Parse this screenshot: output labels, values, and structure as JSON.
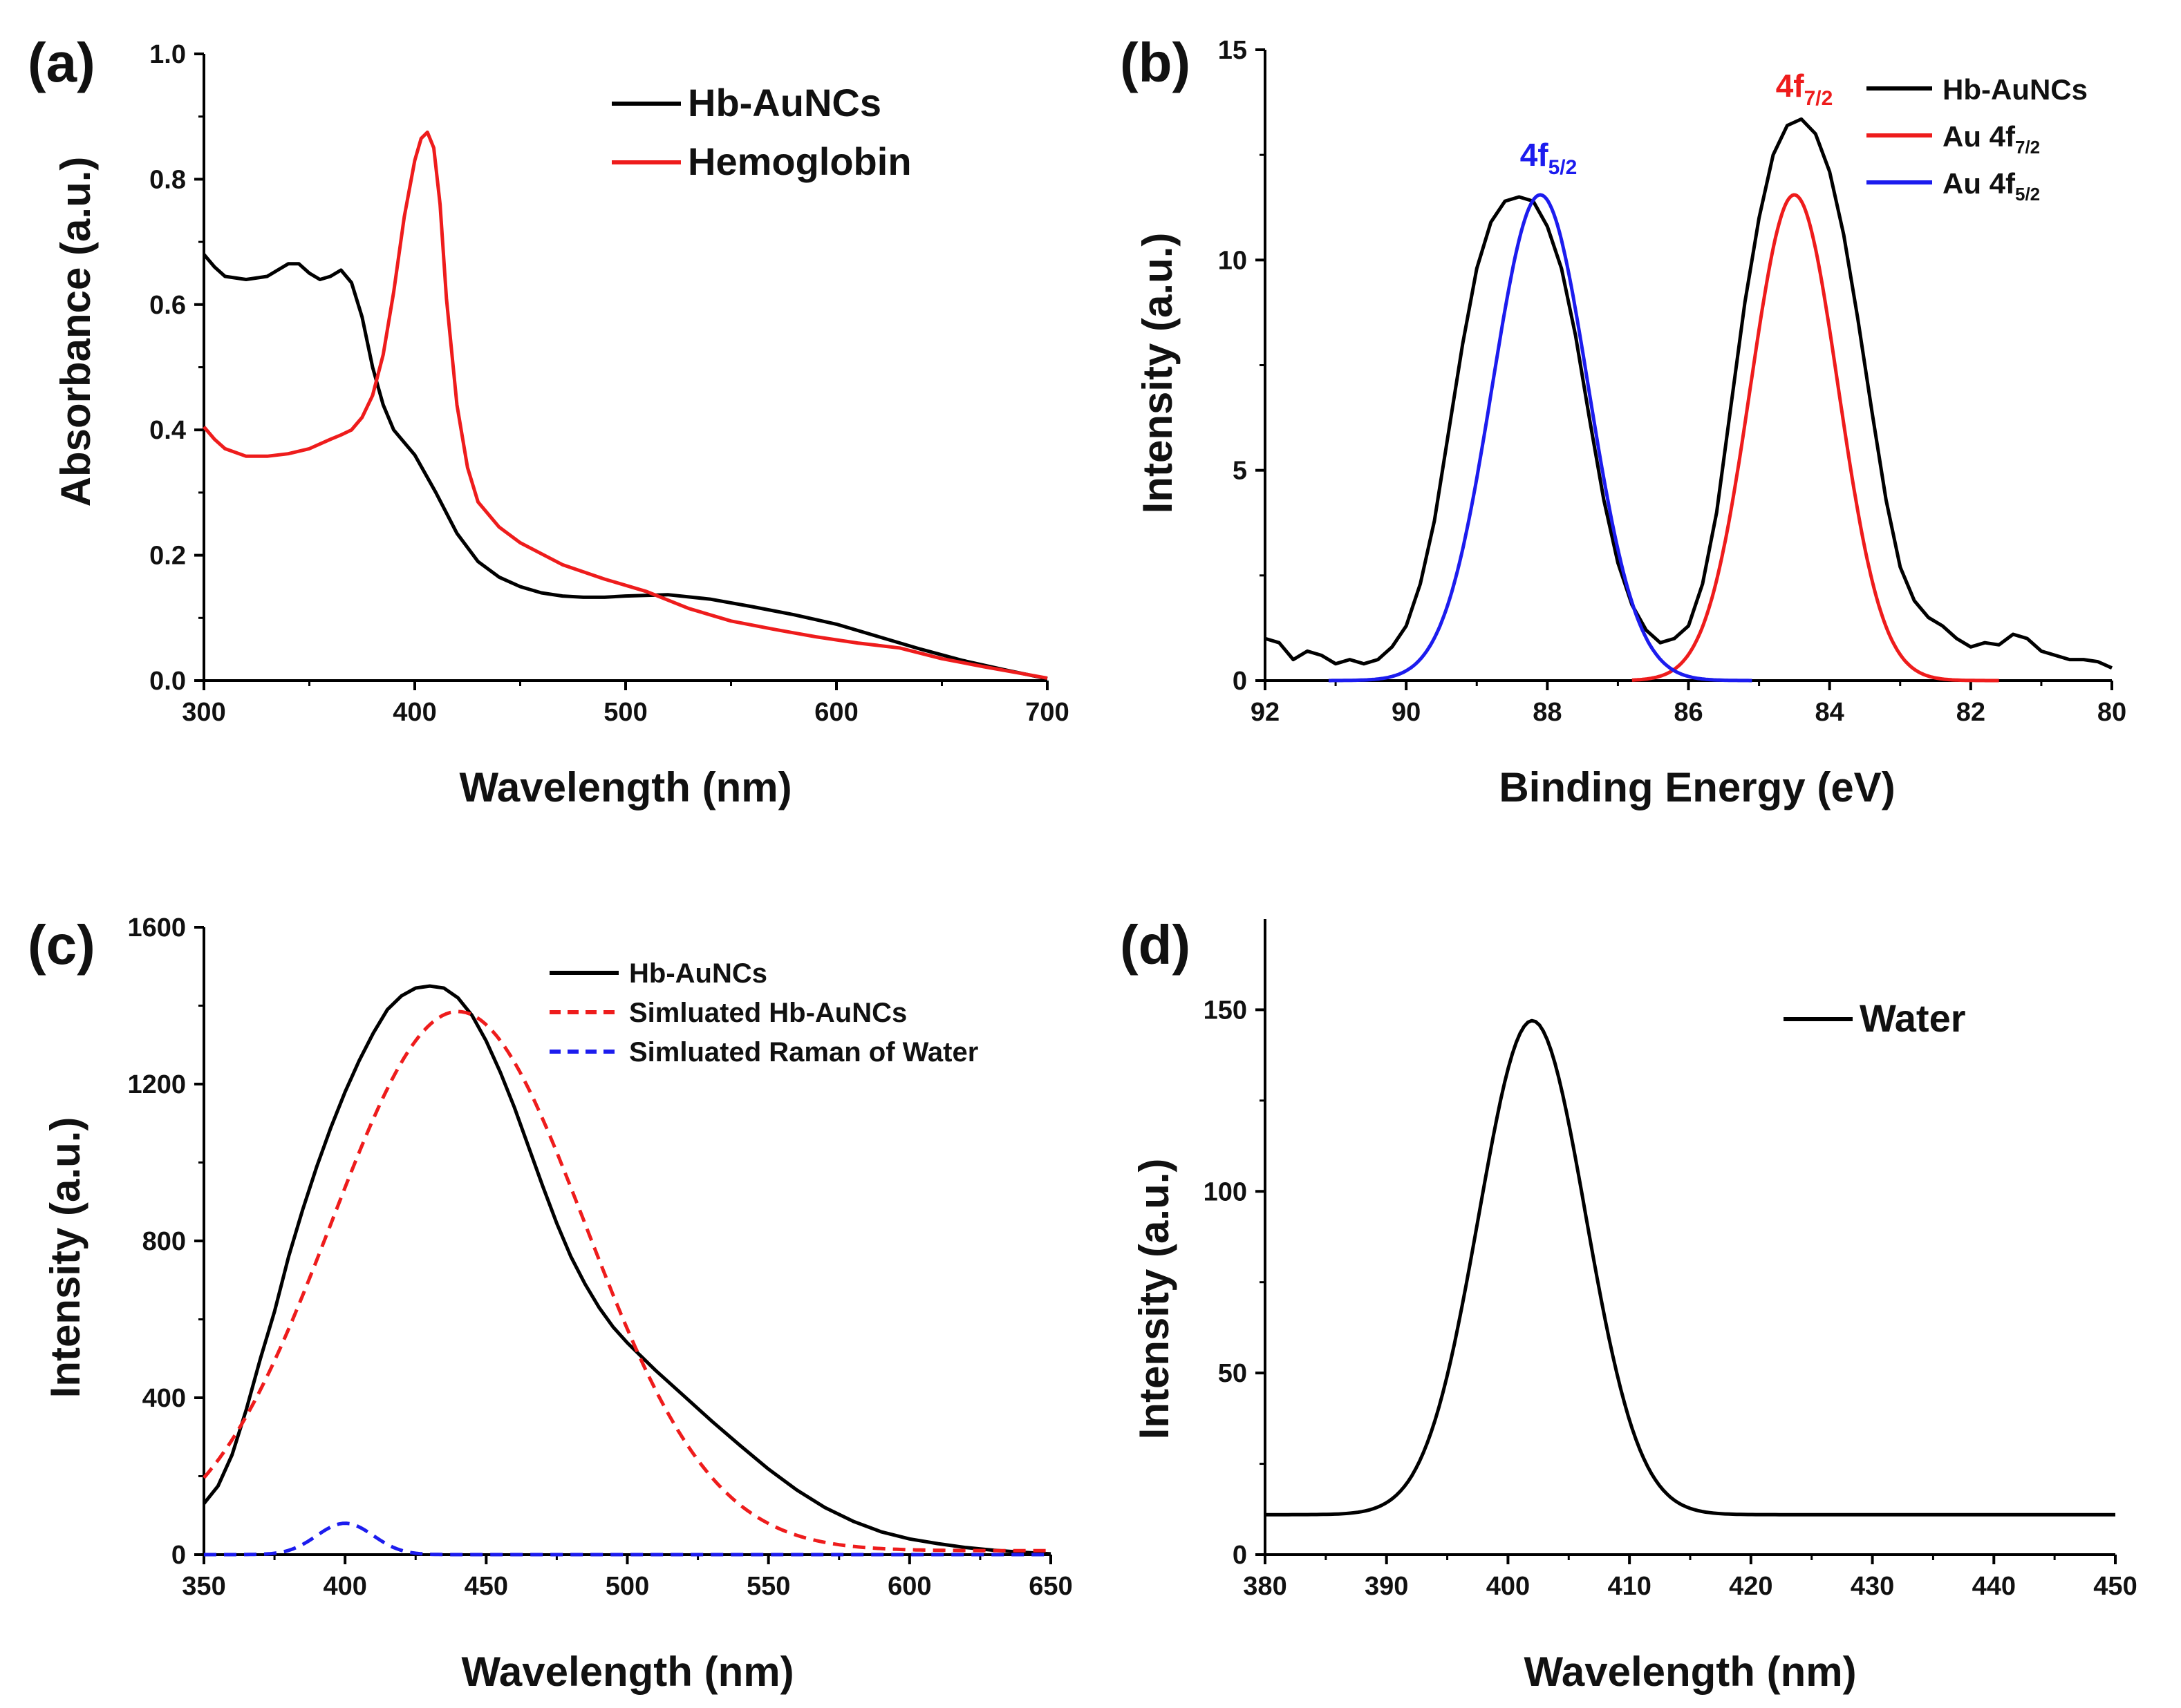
{
  "chart_data": [
    {
      "id": "a",
      "panel_label": "(a)",
      "type": "line",
      "xlabel": "Wavelength (nm)",
      "ylabel": "Absorbance (a.u.)",
      "xlim": [
        300,
        700
      ],
      "ylim": [
        0.0,
        1.0
      ],
      "xticks": [
        300,
        400,
        500,
        600,
        700
      ],
      "xtick_labels": [
        "300",
        "400",
        "500",
        "600",
        "700"
      ],
      "yticks": [
        0.0,
        0.2,
        0.4,
        0.6,
        0.8,
        1.0
      ],
      "ytick_labels": [
        "0.0",
        "0.2",
        "0.4",
        "0.6",
        "0.8",
        "1.0"
      ],
      "legend_position": "top-right",
      "series": [
        {
          "name": "Hb-AuNCs",
          "color": "#000000",
          "dash": false,
          "x": [
            300,
            305,
            310,
            320,
            330,
            335,
            340,
            345,
            350,
            355,
            360,
            365,
            370,
            375,
            380,
            385,
            390,
            400,
            410,
            420,
            430,
            440,
            450,
            460,
            470,
            480,
            490,
            500,
            520,
            540,
            560,
            580,
            600,
            620,
            640,
            660,
            680,
            700
          ],
          "y": [
            0.68,
            0.66,
            0.645,
            0.64,
            0.645,
            0.655,
            0.665,
            0.665,
            0.65,
            0.64,
            0.645,
            0.655,
            0.635,
            0.58,
            0.5,
            0.44,
            0.4,
            0.36,
            0.3,
            0.235,
            0.19,
            0.165,
            0.15,
            0.14,
            0.135,
            0.133,
            0.133,
            0.135,
            0.137,
            0.13,
            0.118,
            0.105,
            0.09,
            0.07,
            0.05,
            0.032,
            0.017,
            0.003
          ]
        },
        {
          "name": "Hemoglobin",
          "color": "#ee1c1c",
          "dash": false,
          "x": [
            300,
            305,
            310,
            320,
            330,
            340,
            350,
            360,
            365,
            370,
            375,
            380,
            385,
            390,
            395,
            400,
            403,
            406,
            409,
            412,
            415,
            420,
            425,
            430,
            440,
            450,
            470,
            490,
            510,
            530,
            550,
            570,
            590,
            610,
            630,
            650,
            670,
            690,
            700
          ],
          "y": [
            0.405,
            0.385,
            0.37,
            0.358,
            0.358,
            0.362,
            0.37,
            0.385,
            0.392,
            0.4,
            0.42,
            0.455,
            0.52,
            0.62,
            0.74,
            0.83,
            0.865,
            0.875,
            0.85,
            0.76,
            0.61,
            0.44,
            0.34,
            0.285,
            0.245,
            0.22,
            0.185,
            0.162,
            0.142,
            0.115,
            0.095,
            0.082,
            0.07,
            0.06,
            0.052,
            0.035,
            0.022,
            0.01,
            0.004
          ]
        }
      ]
    },
    {
      "id": "b",
      "panel_label": "(b)",
      "type": "line",
      "xlabel": "Binding Energy (eV)",
      "ylabel": "Intensity (a.u.)",
      "xlim": [
        92,
        80
      ],
      "x_reversed": true,
      "ylim": [
        0,
        15
      ],
      "xticks": [
        92,
        90,
        88,
        86,
        84,
        82,
        80
      ],
      "xtick_labels": [
        "92",
        "90",
        "88",
        "86",
        "84",
        "82",
        "80"
      ],
      "yticks": [
        0,
        5,
        10,
        15
      ],
      "ytick_labels": [
        "0",
        "5",
        "10",
        "15"
      ],
      "legend_position": "top-right",
      "legend": [
        {
          "label": "Hb-AuNCs",
          "color": "#000000"
        },
        {
          "label": "Au 4f",
          "sub": "7/2",
          "color": "#ee1c1c"
        },
        {
          "label": "Au 4f",
          "sub": "5/2",
          "color": "#1c1cee"
        }
      ],
      "annotations": [
        {
          "text": "4f",
          "sub": "5/2",
          "color": "#1c1cee",
          "x": 88.05,
          "y": 12.4
        },
        {
          "text": "4f",
          "sub": "7/2",
          "color": "#ee1c1c",
          "x": 84.7,
          "y": 14.2
        }
      ],
      "series": [
        {
          "name": "Hb-AuNCs",
          "color": "#000000",
          "x": [
            92,
            91.8,
            91.6,
            91.4,
            91.2,
            91.0,
            90.8,
            90.6,
            90.4,
            90.2,
            90.0,
            89.8,
            89.6,
            89.4,
            89.2,
            89.0,
            88.8,
            88.6,
            88.4,
            88.2,
            88.0,
            87.8,
            87.6,
            87.4,
            87.2,
            87.0,
            86.8,
            86.6,
            86.4,
            86.2,
            86.0,
            85.8,
            85.6,
            85.4,
            85.2,
            85.0,
            84.8,
            84.6,
            84.4,
            84.2,
            84.0,
            83.8,
            83.6,
            83.4,
            83.2,
            83.0,
            82.8,
            82.6,
            82.4,
            82.2,
            82.0,
            81.8,
            81.6,
            81.4,
            81.2,
            81.0,
            80.8,
            80.6,
            80.4,
            80.2,
            80.0
          ],
          "y": [
            1.0,
            0.9,
            0.5,
            0.7,
            0.6,
            0.4,
            0.5,
            0.4,
            0.5,
            0.8,
            1.3,
            2.3,
            3.8,
            5.9,
            8.0,
            9.8,
            10.9,
            11.4,
            11.5,
            11.4,
            10.8,
            9.8,
            8.2,
            6.2,
            4.3,
            2.8,
            1.8,
            1.2,
            0.9,
            1.0,
            1.3,
            2.3,
            4.0,
            6.5,
            9.0,
            11.0,
            12.5,
            13.2,
            13.35,
            13.0,
            12.1,
            10.6,
            8.6,
            6.4,
            4.3,
            2.7,
            1.9,
            1.5,
            1.3,
            1.0,
            0.8,
            0.9,
            0.85,
            1.1,
            1.0,
            0.7,
            0.6,
            0.5,
            0.5,
            0.45,
            0.3
          ]
        },
        {
          "name": "Au 4f7/2",
          "color": "#ee1c1c",
          "model": "gaussian",
          "center": 84.5,
          "amplitude": 11.55,
          "sigma": 0.62,
          "range": [
            86.8,
            81.6
          ]
        },
        {
          "name": "Au 4f5/2",
          "color": "#1c1cee",
          "model": "gaussian",
          "center": 88.1,
          "amplitude": 11.55,
          "sigma": 0.68,
          "range": [
            91.1,
            85.1
          ]
        }
      ]
    },
    {
      "id": "c",
      "panel_label": "(c)",
      "type": "line",
      "xlabel": "Wavelength (nm)",
      "ylabel": "Intensity (a.u.)",
      "xlim": [
        350,
        650
      ],
      "ylim": [
        0,
        1600
      ],
      "xticks": [
        350,
        400,
        450,
        500,
        550,
        600,
        650
      ],
      "xtick_labels": [
        "350",
        "400",
        "450",
        "500",
        "550",
        "600",
        "650"
      ],
      "yticks": [
        0,
        400,
        800,
        1200,
        1600
      ],
      "ytick_labels": [
        "0",
        "400",
        "800",
        "1200",
        "1600"
      ],
      "legend_position": "top-right",
      "series": [
        {
          "name": "Hb-AuNCs",
          "color": "#000000",
          "dash": false,
          "x": [
            350,
            355,
            360,
            365,
            370,
            375,
            380,
            385,
            390,
            395,
            400,
            405,
            410,
            415,
            420,
            425,
            430,
            435,
            440,
            445,
            450,
            455,
            460,
            465,
            470,
            475,
            480,
            485,
            490,
            495,
            500,
            510,
            520,
            530,
            540,
            550,
            560,
            570,
            580,
            590,
            600,
            610,
            620,
            630,
            640,
            650
          ],
          "y": [
            130,
            175,
            255,
            370,
            500,
            620,
            760,
            880,
            990,
            1090,
            1180,
            1260,
            1330,
            1390,
            1425,
            1445,
            1450,
            1445,
            1420,
            1375,
            1310,
            1230,
            1140,
            1040,
            940,
            845,
            760,
            690,
            630,
            580,
            540,
            470,
            405,
            340,
            278,
            218,
            165,
            120,
            85,
            58,
            40,
            28,
            18,
            11,
            6,
            2
          ]
        },
        {
          "name": "Simluated Hb-AuNCs",
          "color": "#ee1c1c",
          "model": "gaussian",
          "dash": true,
          "center": 440,
          "amplitude": 1375,
          "sigma": 45,
          "offset": 10,
          "range": [
            350,
            650
          ]
        },
        {
          "name": "Simluated Raman of Water",
          "color": "#1c1cee",
          "model": "gaussian",
          "dash": true,
          "center": 400,
          "amplitude": 80,
          "sigma": 10,
          "offset": 0,
          "range": [
            350,
            650
          ]
        }
      ]
    },
    {
      "id": "d",
      "panel_label": "(d)",
      "type": "line",
      "xlabel": "Wavelength (nm)",
      "ylabel": "Intensity (a.u.)",
      "xlim": [
        380,
        450
      ],
      "ylim": [
        0,
        175
      ],
      "xticks": [
        380,
        390,
        400,
        410,
        420,
        430,
        440,
        450
      ],
      "xtick_labels": [
        "380",
        "390",
        "400",
        "410",
        "420",
        "430",
        "440",
        "450"
      ],
      "yticks": [
        0,
        50,
        100,
        150
      ],
      "ytick_labels": [
        "0",
        "50",
        "100",
        "150"
      ],
      "legend_position": "top-right",
      "series": [
        {
          "name": "Water",
          "color": "#000000",
          "model": "gaussian",
          "dash": false,
          "center": 402,
          "amplitude": 136,
          "sigma": 4.4,
          "offset": 11,
          "range": [
            380,
            450
          ]
        }
      ]
    }
  ]
}
